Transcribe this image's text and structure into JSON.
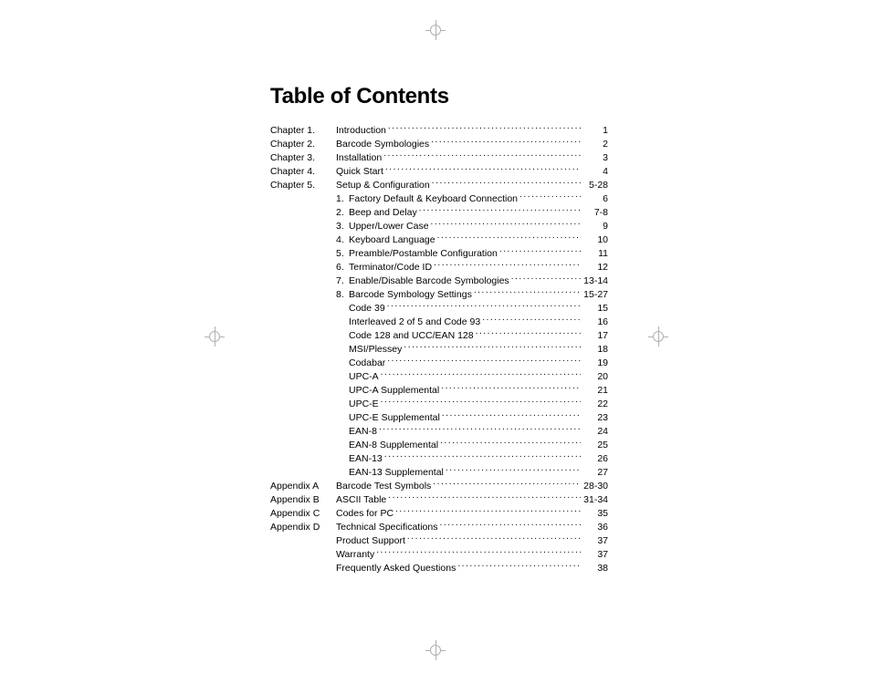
{
  "title": "Table of Contents",
  "header_faint_left": "",
  "header_faint_right": "",
  "colors": {
    "text": "#000000",
    "background": "#ffffff",
    "faint": "#d0d0d0",
    "reg": "#b0b0b0"
  },
  "toc": [
    {
      "section": "Chapter 1.",
      "label": "Introduction",
      "page": "1"
    },
    {
      "section": "Chapter 2.",
      "label": "Barcode Symbologies",
      "page": "2"
    },
    {
      "section": "Chapter 3.",
      "label": "Installation",
      "page": "3"
    },
    {
      "section": "Chapter 4.",
      "label": "Quick Start",
      "page": "4"
    },
    {
      "section": "Chapter 5.",
      "label": "Setup & Configuration",
      "page": "5-28"
    },
    {
      "section": "",
      "num": "1.",
      "label": "Factory Default & Keyboard Connection",
      "page": "6"
    },
    {
      "section": "",
      "num": "2.",
      "label": "Beep and Delay",
      "page": "7-8"
    },
    {
      "section": "",
      "num": "3.",
      "label": "Upper/Lower Case",
      "page": "9"
    },
    {
      "section": "",
      "num": "4.",
      "label": "Keyboard Language",
      "page": "10"
    },
    {
      "section": "",
      "num": "5.",
      "label": "Preamble/Postamble Configuration",
      "page": "11"
    },
    {
      "section": "",
      "num": "6.",
      "label": "Terminator/Code ID",
      "page": "12"
    },
    {
      "section": "",
      "num": "7.",
      "label": "Enable/Disable Barcode Symbologies",
      "page": "13-14"
    },
    {
      "section": "",
      "num": "8.",
      "label": "Barcode Symbology Settings",
      "page": "15-27"
    },
    {
      "section": "",
      "sub": true,
      "label": "Code 39",
      "page": "15"
    },
    {
      "section": "",
      "sub": true,
      "label": "Interleaved 2 of 5 and Code 93",
      "page": "16"
    },
    {
      "section": "",
      "sub": true,
      "label": "Code 128 and UCC/EAN 128",
      "page": "17"
    },
    {
      "section": "",
      "sub": true,
      "label": "MSI/Plessey",
      "page": "18"
    },
    {
      "section": "",
      "sub": true,
      "label": "Codabar",
      "page": "19"
    },
    {
      "section": "",
      "sub": true,
      "label": "UPC-A",
      "page": "20"
    },
    {
      "section": "",
      "sub": true,
      "label": "UPC-A Supplemental",
      "page": "21"
    },
    {
      "section": "",
      "sub": true,
      "label": "UPC-E",
      "page": "22"
    },
    {
      "section": "",
      "sub": true,
      "label": "UPC-E Supplemental",
      "page": "23"
    },
    {
      "section": "",
      "sub": true,
      "label": "EAN-8",
      "page": "24"
    },
    {
      "section": "",
      "sub": true,
      "label": "EAN-8 Supplemental",
      "page": "25"
    },
    {
      "section": "",
      "sub": true,
      "label": "EAN-13",
      "page": "26"
    },
    {
      "section": "",
      "sub": true,
      "label": "EAN-13 Supplemental",
      "page": "27"
    },
    {
      "section": "Appendix A",
      "label": "Barcode Test Symbols",
      "page": "28-30"
    },
    {
      "section": "Appendix B",
      "label": "ASCII Table",
      "page": "31-34"
    },
    {
      "section": "Appendix C",
      "label": "Codes for PC",
      "page": "35"
    },
    {
      "section": "Appendix D",
      "label": "Technical Specifications",
      "page": "36"
    },
    {
      "section": "",
      "label": "Product Support",
      "page": "37"
    },
    {
      "section": "",
      "label": "Warranty",
      "page": "37"
    },
    {
      "section": "",
      "label": "Frequently Asked Questions",
      "page": "38"
    }
  ]
}
